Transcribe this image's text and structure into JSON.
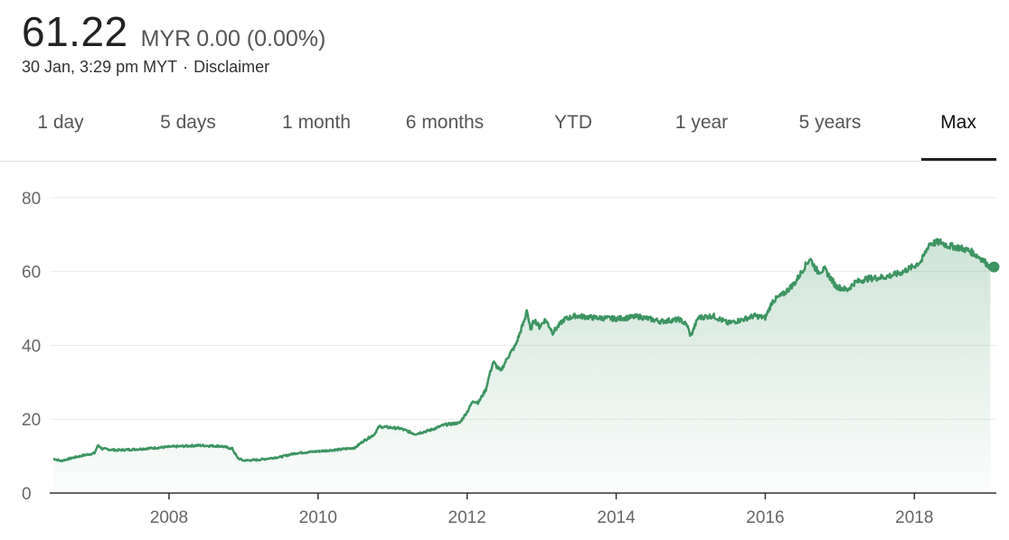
{
  "quote": {
    "price": "61.22",
    "currency": "MYR",
    "change": "0.00 (0.00%)",
    "timestamp": "30 Jan, 3:29 pm MYT",
    "separator": "·",
    "disclaimer": "Disclaimer"
  },
  "tabs": [
    {
      "label": "1 day"
    },
    {
      "label": "5 days"
    },
    {
      "label": "1 month"
    },
    {
      "label": "6 months"
    },
    {
      "label": "YTD"
    },
    {
      "label": "1 year"
    },
    {
      "label": "5 years"
    },
    {
      "label": "Max"
    }
  ],
  "selected_tab": "Max",
  "colors": {
    "line": "#3d9461",
    "fill": "#3d9461",
    "grid": "#ebebeb",
    "axis": "#333333"
  },
  "chart_data": {
    "type": "area",
    "title": "",
    "xlabel": "",
    "ylabel": "",
    "grid": true,
    "ylim": [
      0,
      90
    ],
    "xlim": [
      2006.4,
      2019.1
    ],
    "yticks": [
      0,
      20,
      40,
      60,
      80
    ],
    "xticks": [
      2008,
      2010,
      2012,
      2014,
      2016,
      2018
    ],
    "series": [
      {
        "values": [
          [
            2006.45,
            9.3
          ],
          [
            2006.55,
            8.7
          ],
          [
            2006.7,
            9.5
          ],
          [
            2006.85,
            10.2
          ],
          [
            2007.0,
            10.8
          ],
          [
            2007.05,
            13.0
          ],
          [
            2007.1,
            12.0
          ],
          [
            2007.3,
            11.6
          ],
          [
            2007.6,
            11.9
          ],
          [
            2008.0,
            12.5
          ],
          [
            2008.4,
            12.9
          ],
          [
            2008.7,
            12.7
          ],
          [
            2008.85,
            12.0
          ],
          [
            2008.92,
            9.5
          ],
          [
            2009.0,
            8.8
          ],
          [
            2009.2,
            9.0
          ],
          [
            2009.5,
            9.8
          ],
          [
            2009.7,
            10.8
          ],
          [
            2010.0,
            11.3
          ],
          [
            2010.3,
            11.8
          ],
          [
            2010.5,
            12.3
          ],
          [
            2010.6,
            14.0
          ],
          [
            2010.75,
            15.8
          ],
          [
            2010.82,
            18.0
          ],
          [
            2011.1,
            17.5
          ],
          [
            2011.3,
            16.0
          ],
          [
            2011.5,
            17.0
          ],
          [
            2011.7,
            18.5
          ],
          [
            2011.9,
            19.0
          ],
          [
            2012.0,
            22.0
          ],
          [
            2012.08,
            25.0
          ],
          [
            2012.15,
            24.5
          ],
          [
            2012.25,
            28.0
          ],
          [
            2012.3,
            32.0
          ],
          [
            2012.35,
            35.5
          ],
          [
            2012.45,
            33.0
          ],
          [
            2012.55,
            37.0
          ],
          [
            2012.65,
            40.0
          ],
          [
            2012.72,
            44.0
          ],
          [
            2012.78,
            47.5
          ],
          [
            2012.8,
            50.0
          ],
          [
            2012.85,
            44.0
          ],
          [
            2012.9,
            47.0
          ],
          [
            2012.97,
            45.0
          ],
          [
            2013.05,
            47.0
          ],
          [
            2013.15,
            43.5
          ],
          [
            2013.3,
            47.0
          ],
          [
            2013.45,
            48.0
          ],
          [
            2013.7,
            47.5
          ],
          [
            2014.0,
            47.2
          ],
          [
            2014.3,
            47.8
          ],
          [
            2014.6,
            46.5
          ],
          [
            2014.85,
            47.0
          ],
          [
            2014.95,
            45.5
          ],
          [
            2015.0,
            42.5
          ],
          [
            2015.1,
            47.5
          ],
          [
            2015.3,
            48.0
          ],
          [
            2015.5,
            46.0
          ],
          [
            2015.7,
            47.0
          ],
          [
            2015.85,
            48.0
          ],
          [
            2016.0,
            47.5
          ],
          [
            2016.1,
            52.0
          ],
          [
            2016.25,
            54.0
          ],
          [
            2016.4,
            57.0
          ],
          [
            2016.55,
            62.0
          ],
          [
            2016.6,
            63.5
          ],
          [
            2016.7,
            60.0
          ],
          [
            2016.8,
            60.5
          ],
          [
            2016.95,
            56.0
          ],
          [
            2017.1,
            55.0
          ],
          [
            2017.2,
            57.0
          ],
          [
            2017.35,
            58.0
          ],
          [
            2017.6,
            58.5
          ],
          [
            2017.8,
            59.5
          ],
          [
            2018.0,
            61.5
          ],
          [
            2018.1,
            63.0
          ],
          [
            2018.2,
            67.5
          ],
          [
            2018.35,
            68.0
          ],
          [
            2018.45,
            67.0
          ],
          [
            2018.6,
            66.5
          ],
          [
            2018.75,
            65.5
          ],
          [
            2018.9,
            63.5
          ],
          [
            2018.95,
            62.5
          ],
          [
            2019.02,
            61.22
          ]
        ]
      }
    ]
  }
}
